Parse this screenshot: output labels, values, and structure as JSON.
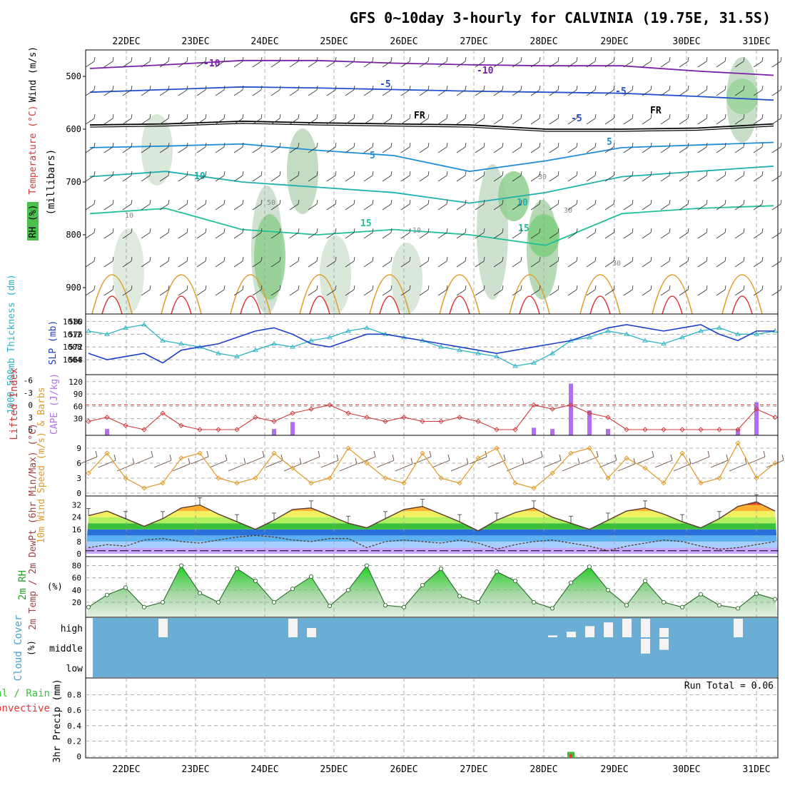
{
  "title": "GFS 0~10day 3-hourly for CALVINIA (19.75E, 31.5S)",
  "dates": [
    "22DEC",
    "23DEC",
    "24DEC",
    "25DEC",
    "26DEC",
    "27DEC",
    "28DEC",
    "29DEC",
    "30DEC",
    "31DEC"
  ],
  "colors": {
    "grid": "#9a9a9a",
    "thickness": "#2ab3c4",
    "slp": "#1c3fc8",
    "lifted_index": "#d23a3a",
    "cape": "#b070ee",
    "wind_speed": "#e09a2a",
    "wind_barb": "#6a4a3a",
    "rh": "#2aa02a",
    "cloud_bg": "#6aaed6",
    "cloud_white": "#f4f4f4",
    "precip_total": "#3cc03c",
    "precip_conv": "#e03a3a"
  },
  "chart_data": [
    {
      "id": "upper_air",
      "type": "heatmap",
      "ylabel_parts": [
        "RH (%)",
        "Temperature (°C)",
        "Wind (m/s)",
        "(millibars)"
      ],
      "yticks": [
        500,
        600,
        700,
        800,
        900
      ],
      "ylim": [
        950,
        450
      ],
      "contour_labels": {
        "temperature": [
          "-10",
          "-10",
          "-5",
          "-5",
          "FR",
          "FR",
          "-5",
          "5",
          "5",
          "10",
          "10",
          "15",
          "15"
        ],
        "rh": [
          "10",
          "10",
          "30",
          "30",
          "50",
          "30"
        ]
      },
      "isotherms": [
        {
          "label": "-10",
          "p": [
            485,
            478,
            470,
            470,
            475,
            478,
            480,
            480,
            490,
            498
          ]
        },
        {
          "label": "-5",
          "p": [
            530,
            525,
            520,
            522,
            525,
            528,
            530,
            532,
            538,
            545
          ]
        },
        {
          "label": "FR",
          "p": [
            592,
            590,
            585,
            588,
            590,
            592,
            600,
            600,
            598,
            590
          ]
        },
        {
          "label": "5",
          "p": [
            635,
            632,
            628,
            640,
            650,
            680,
            660,
            635,
            630,
            625
          ]
        },
        {
          "label": "10",
          "p": [
            690,
            680,
            700,
            710,
            720,
            740,
            720,
            690,
            680,
            670
          ]
        },
        {
          "label": "15",
          "p": [
            760,
            750,
            790,
            800,
            790,
            800,
            820,
            760,
            750,
            745
          ]
        }
      ]
    },
    {
      "id": "thickness_slp",
      "type": "line",
      "ylabel_left": "1000-500mb Thickness (dm)",
      "ylabel_right": "SLP (mb)",
      "yticks_left": [
        568,
        572,
        576,
        580
      ],
      "yticks_right": [
        1004,
        1008,
        1012,
        1016
      ],
      "series": [
        {
          "name": "1000-500mb Thickness",
          "values": [
            577,
            576,
            578,
            579,
            574,
            573,
            572,
            570,
            569,
            571,
            573,
            572,
            574,
            575,
            577,
            578,
            576,
            575,
            574,
            572,
            571,
            570,
            569,
            566,
            567,
            570,
            574,
            575,
            577,
            576,
            574,
            573,
            575,
            577,
            578,
            576,
            576,
            577
          ]
        },
        {
          "name": "SLP",
          "values": [
            1006,
            1004,
            1005,
            1006,
            1003,
            1007,
            1008,
            1009,
            1011,
            1013,
            1014,
            1012,
            1009,
            1008,
            1010,
            1012,
            1012,
            1011,
            1010,
            1009,
            1008,
            1007,
            1006,
            1007,
            1008,
            1009,
            1010,
            1012,
            1014,
            1015,
            1014,
            1013,
            1014,
            1015,
            1012,
            1010,
            1013,
            1013
          ]
        }
      ]
    },
    {
      "id": "lifted_cape",
      "type": "bar",
      "ylabel_left": "Lifted Index",
      "ylabel_right": "CAPE (J/kg)",
      "yticks_left": [
        "-6",
        "-3",
        "0",
        "3",
        "6"
      ],
      "yticks_right": [
        "30",
        "60",
        "90",
        "120"
      ],
      "lifted_index": [
        4,
        3,
        5,
        6,
        2,
        5,
        6,
        6,
        6,
        3,
        4,
        2,
        1,
        0,
        2,
        3,
        4,
        3,
        4,
        4,
        3,
        4,
        6,
        6,
        0,
        1,
        0,
        2,
        3,
        6,
        6,
        6,
        6,
        6,
        6,
        6,
        1,
        3
      ],
      "cape": [
        0,
        5,
        0,
        0,
        0,
        0,
        0,
        0,
        0,
        0,
        5,
        22,
        0,
        0,
        0,
        0,
        0,
        0,
        0,
        0,
        0,
        0,
        0,
        0,
        8,
        5,
        115,
        50,
        5,
        0,
        0,
        0,
        0,
        0,
        0,
        5,
        70,
        0
      ]
    },
    {
      "id": "wind10m",
      "type": "line",
      "ylabel": "10m Wind Speed (m/s) & Barbs",
      "yticks": [
        0,
        3,
        6,
        9
      ],
      "ylim": [
        0,
        11
      ],
      "values": [
        4,
        8,
        3,
        1,
        2,
        7,
        8,
        3,
        2,
        3,
        8,
        5,
        2,
        3,
        9,
        6,
        3,
        2,
        8,
        3,
        2,
        7,
        9,
        2,
        1,
        4,
        8,
        9,
        3,
        7,
        5,
        2,
        8,
        2,
        3,
        10,
        3,
        6
      ]
    },
    {
      "id": "temp2m",
      "type": "area",
      "ylabel": "2m Temp / 2m DewPt (6hr Min/Max) (°C)",
      "yticks": [
        0,
        8,
        16,
        24,
        32
      ],
      "ylim": [
        0,
        36
      ],
      "temp": [
        25,
        28,
        23,
        18,
        23,
        30,
        32,
        26,
        21,
        16,
        22,
        29,
        30,
        25,
        20,
        17,
        23,
        29,
        31,
        26,
        21,
        15,
        22,
        27,
        30,
        24,
        20,
        16,
        22,
        28,
        30,
        26,
        21,
        17,
        23,
        31,
        34,
        28
      ],
      "dewpoint": [
        4,
        6,
        5,
        9,
        10,
        8,
        7,
        9,
        11,
        12,
        11,
        9,
        8,
        10,
        10,
        4,
        8,
        9,
        8,
        7,
        9,
        7,
        3,
        6,
        8,
        9,
        7,
        5,
        2,
        5,
        7,
        9,
        8,
        5,
        3,
        4,
        6,
        8
      ]
    },
    {
      "id": "rh2m",
      "type": "area",
      "ylabel": "2m RH (%)",
      "yticks": [
        20,
        40,
        60,
        80
      ],
      "ylim": [
        0,
        90
      ],
      "values": [
        12,
        32,
        44,
        12,
        20,
        80,
        35,
        20,
        75,
        55,
        20,
        42,
        62,
        14,
        40,
        80,
        15,
        12,
        48,
        75,
        30,
        20,
        70,
        55,
        20,
        10,
        52,
        78,
        40,
        15,
        55,
        20,
        12,
        33,
        15,
        10,
        34,
        25
      ]
    },
    {
      "id": "cloud_cover",
      "type": "heatmap",
      "ylabel": "Cloud Cover (%)",
      "levels": [
        "high",
        "middle",
        "low"
      ],
      "high": [
        0,
        0,
        0,
        0,
        100,
        0,
        0,
        0,
        0,
        0,
        0,
        100,
        50,
        0,
        0,
        0,
        0,
        0,
        0,
        0,
        0,
        0,
        0,
        0,
        0,
        10,
        30,
        60,
        80,
        100,
        100,
        50,
        0,
        0,
        0,
        100,
        0,
        0
      ],
      "middle": [
        0,
        0,
        0,
        0,
        0,
        0,
        0,
        0,
        0,
        0,
        0,
        0,
        0,
        0,
        0,
        0,
        0,
        0,
        0,
        0,
        0,
        0,
        0,
        0,
        0,
        0,
        0,
        0,
        0,
        0,
        80,
        60,
        0,
        0,
        0,
        0,
        0,
        0
      ]
    },
    {
      "id": "precip",
      "type": "bar",
      "ylabel": "3hr Precip (mm)",
      "legend": [
        "Total / Rain",
        "Convective"
      ],
      "run_total": "Run Total = 0.06",
      "yticks": [
        "0",
        "0.2",
        "0.4",
        "0.6",
        "0.8"
      ],
      "ylim": [
        0,
        1
      ],
      "total": [
        0,
        0,
        0,
        0,
        0,
        0,
        0,
        0,
        0,
        0,
        0,
        0,
        0,
        0,
        0,
        0,
        0,
        0,
        0,
        0,
        0,
        0,
        0,
        0,
        0,
        0,
        0.06,
        0,
        0,
        0,
        0,
        0,
        0,
        0,
        0,
        0,
        0,
        0
      ],
      "convective": [
        0,
        0,
        0,
        0,
        0,
        0,
        0,
        0,
        0,
        0,
        0,
        0,
        0,
        0,
        0,
        0,
        0,
        0,
        0,
        0,
        0,
        0,
        0,
        0,
        0,
        0,
        0.03,
        0,
        0,
        0,
        0,
        0,
        0,
        0,
        0,
        0,
        0,
        0
      ]
    }
  ]
}
